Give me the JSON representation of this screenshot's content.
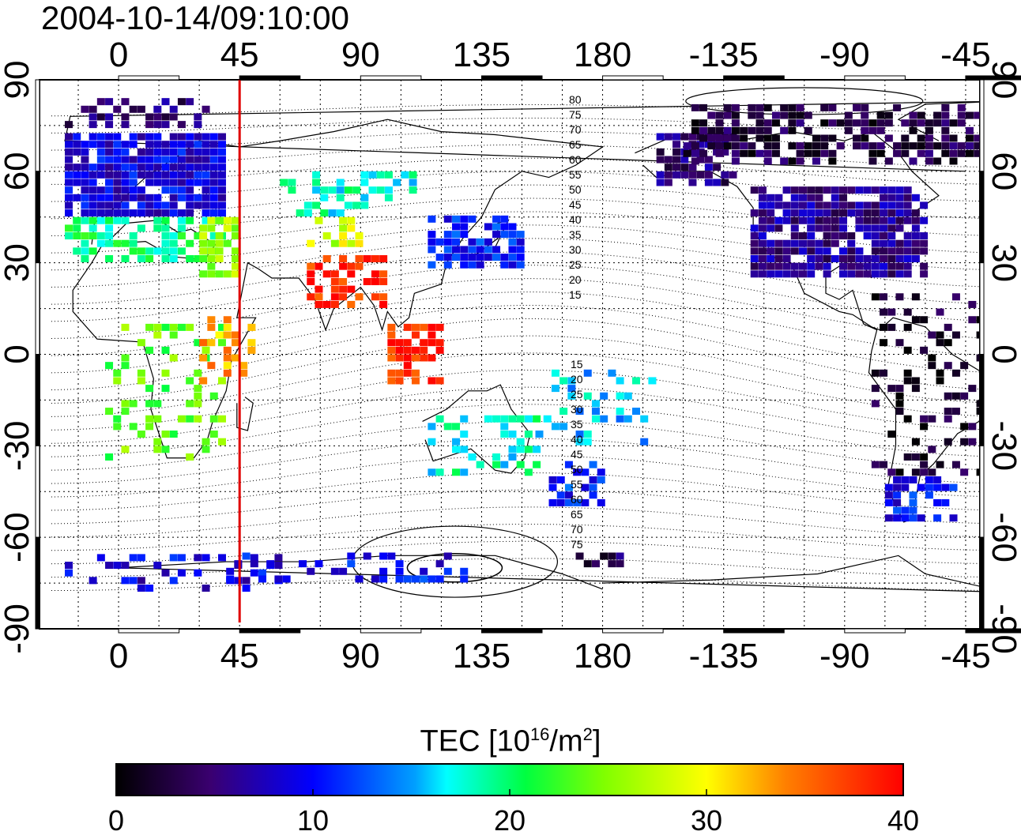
{
  "header": {
    "timestamp": "2004-10-14/09:10:00"
  },
  "map": {
    "lon_ticks": [
      "0",
      "45",
      "90",
      "135",
      "180",
      "-135",
      "-90",
      "-45"
    ],
    "lat_ticks": [
      "90",
      "60",
      "30",
      "0",
      "-30",
      "-60",
      "-90"
    ],
    "dip_labels_north": [
      "80",
      "75",
      "70",
      "65",
      "60",
      "55",
      "50",
      "45",
      "40",
      "35",
      "30",
      "25",
      "20",
      "15"
    ],
    "dip_labels_south": [
      "15",
      "20",
      "25",
      "30",
      "35",
      "40",
      "45",
      "50",
      "55",
      "60",
      "65",
      "70",
      "75"
    ],
    "marker_longitude": 45,
    "marker_color": "#e00000"
  },
  "colorbar": {
    "title_main": "TEC  [10",
    "title_exp": "16",
    "title_unit": "/m",
    "title_exp2": "2",
    "title_end": "]",
    "ticks": [
      "0",
      "10",
      "20",
      "30",
      "40"
    ],
    "range": [
      0,
      40
    ]
  }
}
